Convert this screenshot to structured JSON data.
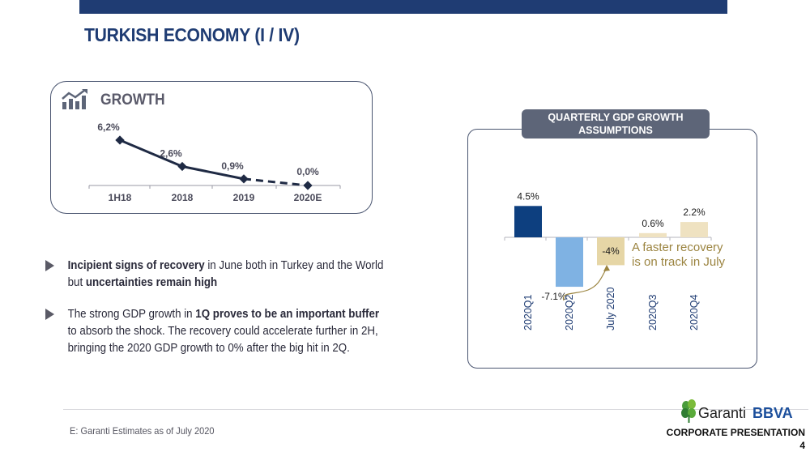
{
  "slide": {
    "title": "TURKISH ECONOMY (I / IV)",
    "brand_color": "#1f3c73"
  },
  "growth": {
    "title": "GROWTH",
    "icon": "growth-chart-icon",
    "points": [
      {
        "label": "1H18",
        "value_label": "6,2%",
        "value": 6.2,
        "estimate": false
      },
      {
        "label": "2018",
        "value_label": "2,6%",
        "value": 2.6,
        "estimate": false
      },
      {
        "label": "2019",
        "value_label": "0,9%",
        "value": 0.9,
        "estimate": false
      },
      {
        "label": "2020E",
        "value_label": "0,0%",
        "value": 0.0,
        "estimate": true
      }
    ]
  },
  "bullets": [
    {
      "icon": "triangle-bullet-icon",
      "segments": [
        {
          "text": "Incipient signs of recovery",
          "bold": true
        },
        {
          "text": " in June both in Turkey and the World but ",
          "bold": false
        },
        {
          "text": "uncertainties remain high",
          "bold": true
        }
      ]
    },
    {
      "icon": "triangle-bullet-icon",
      "segments": [
        {
          "text": "The strong GDP growth in ",
          "bold": false
        },
        {
          "text": "1Q proves to be an important buffer",
          "bold": true
        },
        {
          "text": " to absorb the shock. The recovery could accelerate further in 2H, bringing the 2020 GDP growth to 0% after the big hit in 2Q.",
          "bold": false
        }
      ]
    }
  ],
  "quarterly": {
    "header_line1": "QUARTERLY GDP GROWTH",
    "header_line2": "ASSUMPTIONS",
    "annotation_line1": "A faster recovery",
    "annotation_line2": "is on track in July",
    "annotation_color": "#9b8440"
  },
  "chart_data": {
    "type": "bar",
    "categories": [
      "2020Q1",
      "2020Q2",
      "July 2020",
      "2020Q3",
      "2020Q4"
    ],
    "values": [
      4.5,
      -7.1,
      -4.0,
      0.6,
      2.2
    ],
    "value_labels": [
      "4.5%",
      "-7.1%",
      "-4%",
      "0.6%",
      "2.2%"
    ],
    "colors": [
      "#0d3f7f",
      "#7fb2e3",
      "#e6d6a6",
      "#efe2c1",
      "#efe2c1"
    ],
    "title": "QUARTERLY GDP GROWTH ASSUMPTIONS",
    "xlabel": "",
    "ylabel": "",
    "grid": false
  },
  "footer": {
    "footnote": "E: Garanti Estimates as of July 2020",
    "logo_text": "Garanti BBVA",
    "presentation": "CORPORATE PRESENTATION",
    "page": "4"
  }
}
